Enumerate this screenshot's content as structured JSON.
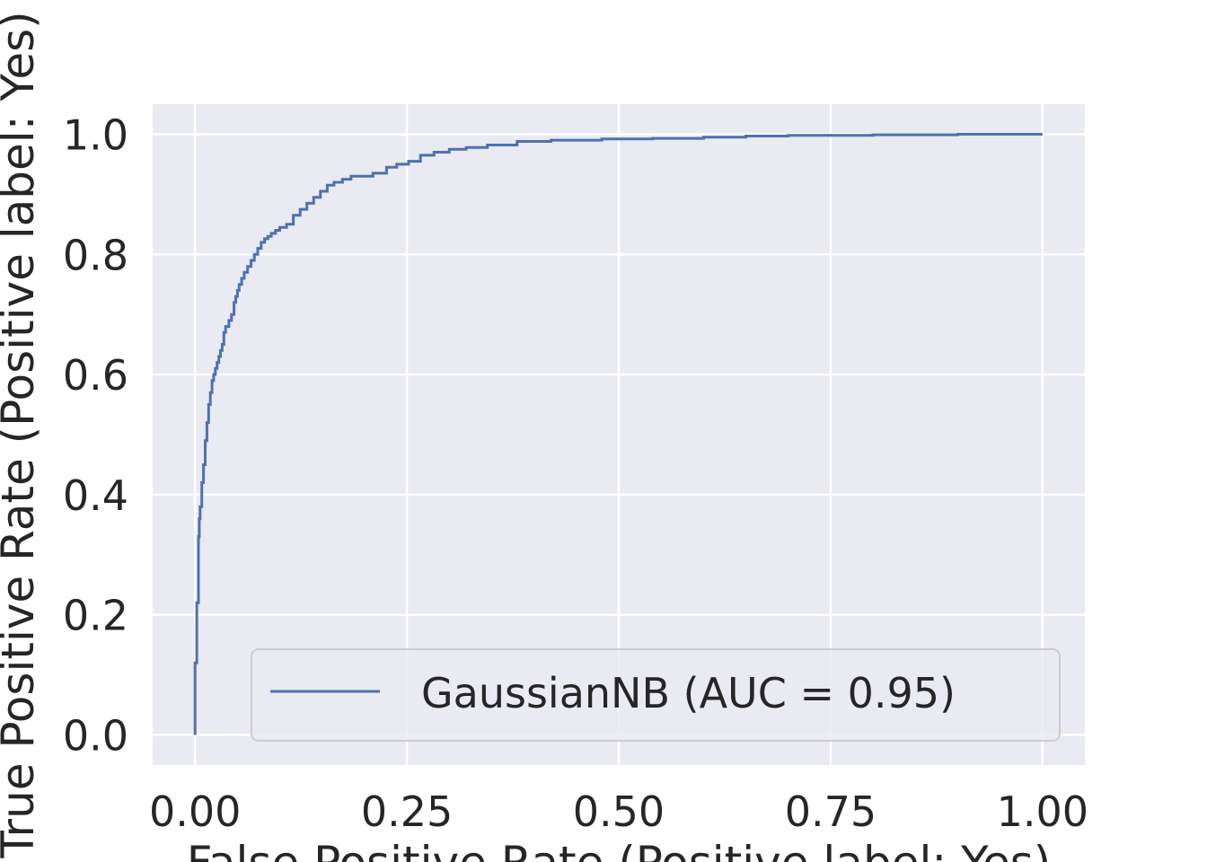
{
  "chart_data": {
    "type": "line",
    "title": "",
    "xlabel": "False Positive Rate (Positive label: Yes)",
    "ylabel": "True Positive Rate (Positive label: Yes)",
    "xlim": [
      -0.05,
      1.05
    ],
    "ylim": [
      -0.05,
      1.05
    ],
    "x_ticks": [
      "0.00",
      "0.25",
      "0.50",
      "0.75",
      "1.00"
    ],
    "y_ticks": [
      "0.0",
      "0.2",
      "0.4",
      "0.6",
      "0.8",
      "1.0"
    ],
    "grid": true,
    "legend_position": "lower-right",
    "colors": {
      "background": "#eaeaf2",
      "grid": "#ffffff",
      "line": "#4c72b0"
    },
    "series": [
      {
        "name": "GaussianNB (AUC = 0.95)",
        "x": [
          0.0,
          0.0,
          0.002,
          0.004,
          0.005,
          0.006,
          0.008,
          0.01,
          0.012,
          0.014,
          0.016,
          0.018,
          0.02,
          0.022,
          0.024,
          0.026,
          0.028,
          0.03,
          0.032,
          0.034,
          0.036,
          0.04,
          0.043,
          0.046,
          0.048,
          0.05,
          0.052,
          0.055,
          0.058,
          0.062,
          0.066,
          0.07,
          0.074,
          0.078,
          0.082,
          0.086,
          0.09,
          0.095,
          0.1,
          0.108,
          0.116,
          0.124,
          0.132,
          0.14,
          0.148,
          0.156,
          0.164,
          0.174,
          0.184,
          0.196,
          0.21,
          0.226,
          0.238,
          0.252,
          0.266,
          0.282,
          0.3,
          0.32,
          0.345,
          0.38,
          0.42,
          0.48,
          0.54,
          0.6,
          0.65,
          0.7,
          0.8,
          0.9,
          1.0
        ],
        "y": [
          0.0,
          0.12,
          0.22,
          0.33,
          0.36,
          0.38,
          0.42,
          0.45,
          0.49,
          0.52,
          0.55,
          0.57,
          0.59,
          0.6,
          0.61,
          0.62,
          0.63,
          0.64,
          0.65,
          0.67,
          0.68,
          0.69,
          0.7,
          0.72,
          0.73,
          0.74,
          0.75,
          0.76,
          0.77,
          0.78,
          0.79,
          0.8,
          0.81,
          0.82,
          0.826,
          0.83,
          0.835,
          0.84,
          0.845,
          0.85,
          0.865,
          0.875,
          0.885,
          0.895,
          0.905,
          0.915,
          0.92,
          0.925,
          0.93,
          0.93,
          0.935,
          0.945,
          0.95,
          0.955,
          0.965,
          0.97,
          0.975,
          0.978,
          0.982,
          0.988,
          0.99,
          0.992,
          0.993,
          0.995,
          0.997,
          0.998,
          0.999,
          1.0,
          1.0
        ]
      }
    ]
  }
}
